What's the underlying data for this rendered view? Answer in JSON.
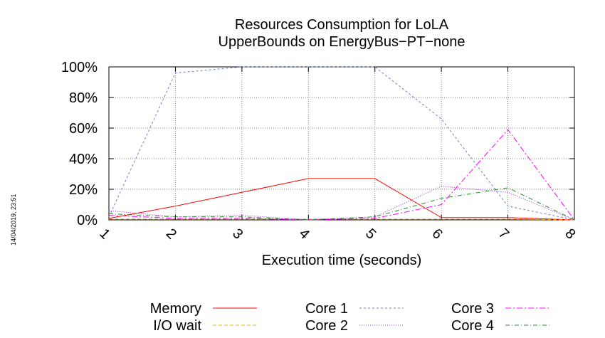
{
  "chart_data": {
    "type": "line",
    "title_lines": [
      "Resources Consumption for LoLA",
      "UpperBounds on EnergyBus−PT−none"
    ],
    "xlabel": "Execution time (seconds)",
    "ylabel": "",
    "x": [
      1,
      2,
      3,
      4,
      5,
      6,
      7,
      8
    ],
    "xlim": [
      1,
      8
    ],
    "ylim": [
      0,
      100
    ],
    "y_ticks": [
      0,
      20,
      40,
      60,
      80,
      100
    ],
    "y_tick_labels": [
      "0%",
      "20%",
      "40%",
      "60%",
      "80%",
      "100%"
    ],
    "grid": true,
    "legend_position": "bottom",
    "series": [
      {
        "name": "Memory",
        "color": "#ff0000",
        "dash": "",
        "values": [
          1,
          9,
          18,
          27,
          27,
          1.5,
          1.5,
          0
        ]
      },
      {
        "name": "I/O wait",
        "color": "#ffa500",
        "dash": "5,3",
        "values": [
          0.5,
          0.5,
          0.5,
          0.5,
          0.5,
          0.5,
          0.5,
          0
        ]
      },
      {
        "name": "Core 1",
        "color": "#6a7fd6",
        "dash": "3,3",
        "values": [
          2,
          96,
          100,
          100,
          100,
          66,
          9,
          0
        ]
      },
      {
        "name": "Core 2",
        "color": "#a020f0",
        "dash": "1,2",
        "values": [
          6,
          2,
          3,
          0,
          2,
          22,
          18,
          0
        ]
      },
      {
        "name": "Core 3",
        "color": "#ff00ff",
        "dash": "8,3,2,3",
        "values": [
          3,
          1,
          1,
          0,
          1,
          10,
          59,
          0
        ]
      },
      {
        "name": "Core 4",
        "color": "#228b22",
        "dash": "6,3,1,3",
        "values": [
          4,
          2,
          2,
          0,
          2,
          14,
          21,
          0
        ]
      }
    ],
    "side_stamp": "14/04/2019, 23:51"
  }
}
